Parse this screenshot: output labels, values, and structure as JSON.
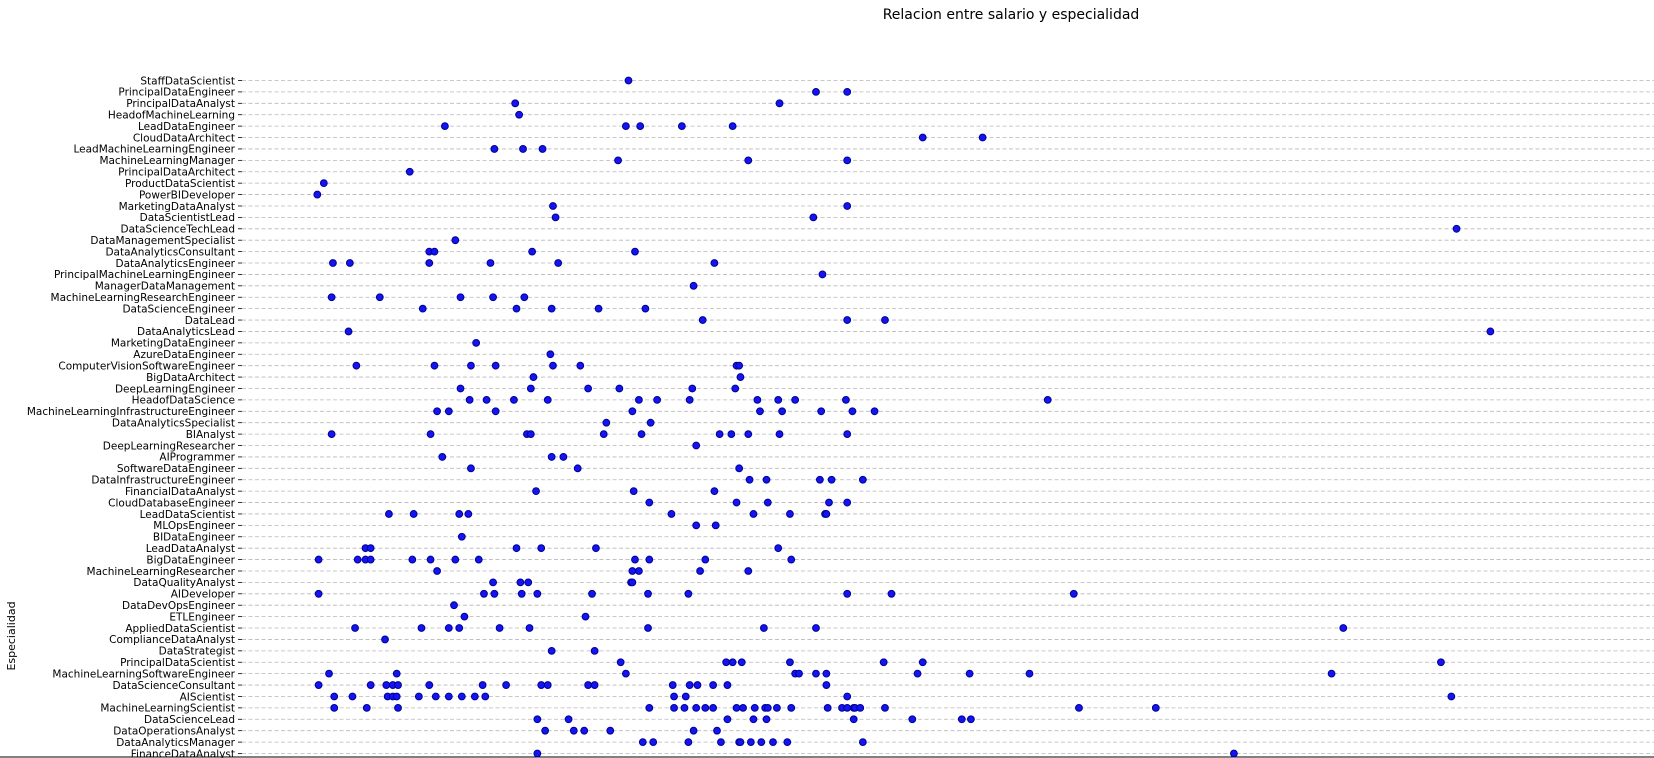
{
  "chart_data": {
    "type": "scatter",
    "title": "Relacion entre salario y especialidad",
    "xlabel": "",
    "ylabel": "Especialidad",
    "grid": "horizontal-dashed",
    "xlim": [
      0,
      1000
    ],
    "colors": {
      "point_fill": "#1414ee",
      "point_edge": "#00009a",
      "grid": "#b8b8b8"
    },
    "categories": [
      "FinanceDataAnalyst",
      "DataAnalyticsManager",
      "DataOperationsAnalyst",
      "DataScienceLead",
      "MachineLearningScientist",
      "AIScientist",
      "DataScienceConsultant",
      "MachineLearningSoftwareEngineer",
      "PrincipalDataScientist",
      "DataStrategist",
      "ComplianceDataAnalyst",
      "AppliedDataScientist",
      "ETLEngineer",
      "DataDevOpsEngineer",
      "AIDeveloper",
      "DataQualityAnalyst",
      "MachineLearningResearcher",
      "BigDataEngineer",
      "LeadDataAnalyst",
      "BIDataEngineer",
      "MLOpsEngineer",
      "LeadDataScientist",
      "CloudDatabaseEngineer",
      "FinancialDataAnalyst",
      "DataInfrastructureEngineer",
      "SoftwareDataEngineer",
      "AIProgrammer",
      "DeepLearningResearcher",
      "BIAnalyst",
      "DataAnalyticsSpecialist",
      "MachineLearningInfrastructureEngineer",
      "HeadofDataScience",
      "DeepLearningEngineer",
      "BigDataArchitect",
      "ComputerVisionSoftwareEngineer",
      "AzureDataEngineer",
      "MarketingDataEngineer",
      "DataAnalyticsLead",
      "DataLead",
      "DataScienceEngineer",
      "MachineLearningResearchEngineer",
      "ManagerDataManagement",
      "PrincipalMachineLearningEngineer",
      "DataAnalyticsEngineer",
      "DataAnalyticsConsultant",
      "DataManagementSpecialist",
      "DataScienceTechLead",
      "DataScientistLead",
      "MarketingDataAnalyst",
      "PowerBIDeveloper",
      "ProductDataScientist",
      "PrincipalDataArchitect",
      "MachineLearningManager",
      "LeadMachineLearningEngineer",
      "CloudDataArchitect",
      "LeadDataEngineer",
      "HeadofMachineLearning",
      "PrincipalDataAnalyst",
      "PrincipalDataEngineer",
      "StaffDataScientist"
    ],
    "points": [
      {
        "category": "FinanceDataAnalyst",
        "x": [
          170,
          705
        ]
      },
      {
        "category": "DataAnalyticsManager",
        "x": [
          251,
          259,
          286,
          311,
          325,
          326,
          334,
          342,
          351,
          362,
          420
        ]
      },
      {
        "category": "DataOperationsAnalyst",
        "x": [
          176,
          198,
          206,
          226,
          290,
          308
        ]
      },
      {
        "category": "DataScienceLead",
        "x": [
          170,
          194,
          316,
          336,
          346,
          413,
          458,
          496,
          503
        ]
      },
      {
        "category": "MachineLearningScientist",
        "x": [
          14,
          39,
          63,
          256,
          275,
          283,
          292,
          299,
          305,
          323,
          328,
          337,
          345,
          347,
          354,
          365,
          393,
          404,
          408,
          413,
          414,
          418,
          437,
          586,
          645
        ]
      },
      {
        "category": "AIScientist",
        "x": [
          14,
          28,
          55,
          59,
          62,
          79,
          92,
          102,
          112,
          122,
          130,
          275,
          284,
          408,
          872
        ]
      },
      {
        "category": "DataScienceConsultant",
        "x": [
          2,
          42,
          54,
          59,
          63,
          87,
          128,
          146,
          173,
          178,
          209,
          214,
          274,
          287,
          293,
          305,
          316,
          392
        ]
      },
      {
        "category": "MachineLearningSoftwareEngineer",
        "x": [
          10,
          62,
          238,
          368,
          371,
          384,
          392,
          462,
          502,
          548,
          780
        ]
      },
      {
        "category": "PrincipalDataScientist",
        "x": [
          234,
          315,
          320,
          327,
          364,
          436,
          466,
          864
        ]
      },
      {
        "category": "DataStrategist",
        "x": [
          181,
          214
        ]
      },
      {
        "category": "ComplianceDataAnalyst",
        "x": [
          53
        ]
      },
      {
        "category": "AppliedDataScientist",
        "x": [
          30,
          81,
          102,
          110,
          141,
          164,
          255,
          344,
          384,
          789
        ]
      },
      {
        "category": "ETLEngineer",
        "x": [
          114,
          207
        ]
      },
      {
        "category": "DataDevOpsEngineer",
        "x": [
          106
        ]
      },
      {
        "category": "AIDeveloper",
        "x": [
          2,
          129,
          137,
          158,
          170,
          212,
          255,
          286,
          408,
          442,
          582
        ]
      },
      {
        "category": "DataQualityAnalyst",
        "x": [
          136,
          157,
          163,
          242,
          243
        ]
      },
      {
        "category": "MachineLearningResearcher",
        "x": [
          93,
          243,
          248,
          295,
          332
        ]
      },
      {
        "category": "BigDataEngineer",
        "x": [
          2,
          32,
          38,
          42,
          74,
          88,
          107,
          125,
          245,
          256,
          299,
          365
        ]
      },
      {
        "category": "LeadDataAnalyst",
        "x": [
          38,
          42,
          154,
          173,
          215,
          355
        ]
      },
      {
        "category": "BIDataEngineer",
        "x": [
          112
        ]
      },
      {
        "category": "MLOpsEngineer",
        "x": [
          292,
          307
        ]
      },
      {
        "category": "LeadDataScientist",
        "x": [
          56,
          75,
          110,
          117,
          273,
          336,
          364,
          391,
          392
        ]
      },
      {
        "category": "CloudDatabaseEngineer",
        "x": [
          256,
          323,
          347,
          394,
          408
        ]
      },
      {
        "category": "FinancialDataAnalyst",
        "x": [
          169,
          244,
          306
        ]
      },
      {
        "category": "DataInfrastructureEngineer",
        "x": [
          333,
          346,
          387,
          396,
          420
        ]
      },
      {
        "category": "SoftwareDataEngineer",
        "x": [
          119,
          201,
          325
        ]
      },
      {
        "category": "AIProgrammer",
        "x": [
          97,
          181,
          190
        ]
      },
      {
        "category": "DeepLearningResearcher",
        "x": [
          292
        ]
      },
      {
        "category": "BIAnalyst",
        "x": [
          12,
          88,
          162,
          165,
          221,
          250,
          310,
          319,
          332,
          356,
          408
        ]
      },
      {
        "category": "DataAnalyticsSpecialist",
        "x": [
          223,
          257
        ]
      },
      {
        "category": "MachineLearningInfrastructureEngineer",
        "x": [
          93,
          102,
          138,
          243,
          341,
          358,
          388,
          412,
          429
        ]
      },
      {
        "category": "HeadofDataScience",
        "x": [
          118,
          131,
          152,
          178,
          248,
          262,
          287,
          339,
          355,
          368,
          407,
          562
        ]
      },
      {
        "category": "DeepLearningEngineer",
        "x": [
          111,
          165,
          209,
          233,
          289,
          322
        ]
      },
      {
        "category": "BigDataArchitect",
        "x": [
          167,
          326
        ]
      },
      {
        "category": "ComputerVisionSoftwareEngineer",
        "x": [
          31,
          91,
          119,
          138,
          182,
          203,
          323,
          325
        ]
      },
      {
        "category": "AzureDataEngineer",
        "x": [
          180
        ]
      },
      {
        "category": "MarketingDataEngineer",
        "x": [
          123
        ]
      },
      {
        "category": "DataAnalyticsLead",
        "x": [
          25,
          902
        ]
      },
      {
        "category": "DataLead",
        "x": [
          297,
          408,
          437
        ]
      },
      {
        "category": "DataScienceEngineer",
        "x": [
          82,
          154,
          181,
          217,
          253
        ]
      },
      {
        "category": "MachineLearningResearchEngineer",
        "x": [
          12,
          49,
          111,
          136,
          160
        ]
      },
      {
        "category": "ManagerDataManagement",
        "x": [
          290
        ]
      },
      {
        "category": "PrincipalMachineLearningEngineer",
        "x": [
          389
        ]
      },
      {
        "category": "DataAnalyticsEngineer",
        "x": [
          13,
          26,
          87,
          134,
          186,
          306
        ]
      },
      {
        "category": "DataAnalyticsConsultant",
        "x": [
          87,
          91,
          166,
          245
        ]
      },
      {
        "category": "DataManagementSpecialist",
        "x": [
          107
        ]
      },
      {
        "category": "DataScienceTechLead",
        "x": [
          876
        ]
      },
      {
        "category": "DataScientistLead",
        "x": [
          184,
          382
        ]
      },
      {
        "category": "MarketingDataAnalyst",
        "x": [
          182,
          408
        ]
      },
      {
        "category": "PowerBIDeveloper",
        "x": [
          1
        ]
      },
      {
        "category": "ProductDataScientist",
        "x": [
          6
        ]
      },
      {
        "category": "PrincipalDataArchitect",
        "x": [
          72
        ]
      },
      {
        "category": "MachineLearningManager",
        "x": [
          232,
          332,
          408
        ]
      },
      {
        "category": "LeadMachineLearningEngineer",
        "x": [
          137,
          159,
          174
        ]
      },
      {
        "category": "CloudDataArchitect",
        "x": [
          466,
          512
        ]
      },
      {
        "category": "LeadDataEngineer",
        "x": [
          99,
          238,
          249,
          281,
          320
        ]
      },
      {
        "category": "HeadofMachineLearning",
        "x": [
          156
        ]
      },
      {
        "category": "PrincipalDataAnalyst",
        "x": [
          153,
          356
        ]
      },
      {
        "category": "PrincipalDataEngineer",
        "x": [
          384,
          408
        ]
      },
      {
        "category": "StaffDataScientist",
        "x": [
          240
        ]
      }
    ]
  }
}
